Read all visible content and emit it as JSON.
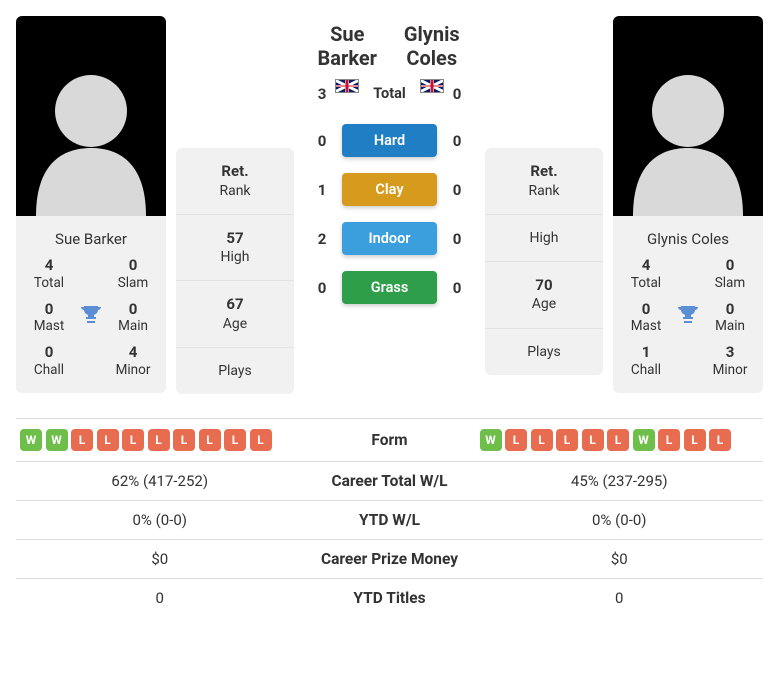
{
  "player1": {
    "name": "Sue Barker",
    "flag": "gb",
    "titles": {
      "total": {
        "v": "4",
        "l": "Total"
      },
      "slam": {
        "v": "0",
        "l": "Slam"
      },
      "mast": {
        "v": "0",
        "l": "Mast"
      },
      "main": {
        "v": "0",
        "l": "Main"
      },
      "chall": {
        "v": "0",
        "l": "Chall"
      },
      "minor": {
        "v": "4",
        "l": "Minor"
      }
    },
    "stats": {
      "rank": {
        "v": "Ret.",
        "l": "Rank"
      },
      "high": {
        "v": "57",
        "l": "High"
      },
      "age": {
        "v": "67",
        "l": "Age"
      },
      "plays": {
        "v": "",
        "l": "Plays"
      }
    },
    "form": [
      "W",
      "W",
      "L",
      "L",
      "L",
      "L",
      "L",
      "L",
      "L",
      "L"
    ]
  },
  "player2": {
    "name": "Glynis Coles",
    "flag": "gb",
    "titles": {
      "total": {
        "v": "4",
        "l": "Total"
      },
      "slam": {
        "v": "0",
        "l": "Slam"
      },
      "mast": {
        "v": "0",
        "l": "Mast"
      },
      "main": {
        "v": "0",
        "l": "Main"
      },
      "chall": {
        "v": "1",
        "l": "Chall"
      },
      "minor": {
        "v": "3",
        "l": "Minor"
      }
    },
    "stats": {
      "rank": {
        "v": "Ret.",
        "l": "Rank"
      },
      "high": {
        "v": "",
        "l": "High"
      },
      "age": {
        "v": "70",
        "l": "Age"
      },
      "plays": {
        "v": "",
        "l": "Plays"
      }
    },
    "form": [
      "W",
      "L",
      "L",
      "L",
      "L",
      "L",
      "W",
      "L",
      "L",
      "L"
    ]
  },
  "h2h": {
    "total": {
      "p1": "3",
      "label": "Total",
      "p2": "0"
    },
    "hard": {
      "p1": "0",
      "label": "Hard",
      "p2": "0"
    },
    "clay": {
      "p1": "1",
      "label": "Clay",
      "p2": "0"
    },
    "indoor": {
      "p1": "2",
      "label": "Indoor",
      "p2": "0"
    },
    "grass": {
      "p1": "0",
      "label": "Grass",
      "p2": "0"
    }
  },
  "compare": {
    "form": {
      "label": "Form"
    },
    "career": {
      "label": "Career Total W/L",
      "p1": "62% (417-252)",
      "p2": "45% (237-295)"
    },
    "ytd": {
      "label": "YTD W/L",
      "p1": "0% (0-0)",
      "p2": "0% (0-0)"
    },
    "prize": {
      "label": "Career Prize Money",
      "p1": "$0",
      "p2": "$0"
    },
    "titles": {
      "label": "YTD Titles",
      "p1": "0",
      "p2": "0"
    }
  }
}
